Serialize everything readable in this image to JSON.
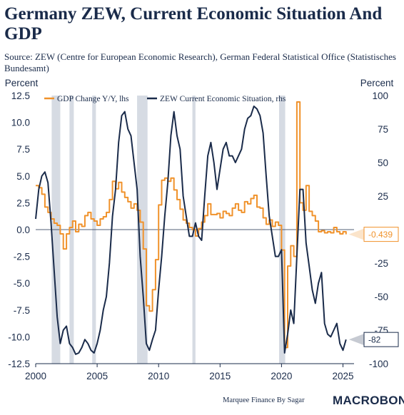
{
  "title": "Germany ZEW, Current Economic Situation And GDP",
  "source": "Source: ZEW (Centre for European Economic Research), German Federal Statistical Office (Statistisches Bundesamt)",
  "footer": {
    "credit": "Marquee Finance By Sagar",
    "logo": "MACROBOND"
  },
  "chart_data": {
    "type": "line",
    "left_axis": {
      "label": "Percent",
      "range": [
        -12.5,
        12.5
      ],
      "ticks": [
        "12.5",
        "10.0",
        "7.5",
        "5.0",
        "2.5",
        "0.0",
        "-2.5",
        "-5.0",
        "-7.5",
        "-10.0",
        "-12.5"
      ]
    },
    "right_axis": {
      "label": "Percent",
      "range": [
        -100,
        100
      ],
      "ticks": [
        "100",
        "75",
        "50",
        "25",
        "",
        "-25",
        "-50",
        "-75",
        "-100"
      ]
    },
    "x_axis": {
      "range": [
        2000,
        2025.9
      ],
      "ticks": [
        "2000",
        "2005",
        "2010",
        "2015",
        "2020",
        "2025"
      ]
    },
    "zero_line": true,
    "recession_bands": [
      [
        2001.3,
        2002.0
      ],
      [
        2002.75,
        2003.1
      ],
      [
        2004.6,
        2004.9
      ],
      [
        2008.25,
        2009.1
      ],
      [
        2012.75,
        2013.0
      ],
      [
        2019.8,
        2020.3
      ]
    ],
    "series": [
      {
        "name": "GDP Change Y/Y, lhs",
        "axis": "left",
        "color": "#f0922b",
        "points": [
          [
            2000,
            4.1
          ],
          [
            2000.25,
            3.9
          ],
          [
            2000.5,
            3.3
          ],
          [
            2000.75,
            2.1
          ],
          [
            2001,
            1.6
          ],
          [
            2001.25,
            1.0
          ],
          [
            2001.5,
            0.6
          ],
          [
            2001.75,
            0.4
          ],
          [
            2002,
            -0.4
          ],
          [
            2002.25,
            -1.8
          ],
          [
            2002.5,
            -0.4
          ],
          [
            2002.75,
            0.2
          ],
          [
            2003,
            0.8
          ],
          [
            2003.25,
            -0.2
          ],
          [
            2003.5,
            0.5
          ],
          [
            2003.75,
            0.3
          ],
          [
            2004,
            1.3
          ],
          [
            2004.25,
            1.6
          ],
          [
            2004.5,
            1.0
          ],
          [
            2004.75,
            0.8
          ],
          [
            2005,
            0.4
          ],
          [
            2005.25,
            1.0
          ],
          [
            2005.5,
            1.2
          ],
          [
            2005.75,
            1.6
          ],
          [
            2006,
            2.8
          ],
          [
            2006.25,
            4.5
          ],
          [
            2006.5,
            3.8
          ],
          [
            2006.75,
            4.4
          ],
          [
            2007,
            3.5
          ],
          [
            2007.25,
            3.0
          ],
          [
            2007.5,
            2.6
          ],
          [
            2007.75,
            2.0
          ],
          [
            2008,
            2.4
          ],
          [
            2008.25,
            1.8
          ],
          [
            2008.5,
            0.7
          ],
          [
            2008.75,
            -1.8
          ],
          [
            2009,
            -7.1
          ],
          [
            2009.25,
            -7.6
          ],
          [
            2009.5,
            -5.6
          ],
          [
            2009.75,
            -2.8
          ],
          [
            2010,
            2.3
          ],
          [
            2010.25,
            4.6
          ],
          [
            2010.5,
            4.8
          ],
          [
            2010.75,
            4.5
          ],
          [
            2011,
            4.8
          ],
          [
            2011.25,
            3.7
          ],
          [
            2011.5,
            2.8
          ],
          [
            2011.75,
            1.9
          ],
          [
            2012,
            0.9
          ],
          [
            2012.25,
            0.6
          ],
          [
            2012.5,
            0.2
          ],
          [
            2012.75,
            0.0
          ],
          [
            2013,
            -0.6
          ],
          [
            2013.25,
            0.1
          ],
          [
            2013.5,
            0.7
          ],
          [
            2013.75,
            1.3
          ],
          [
            2014,
            2.4
          ],
          [
            2014.25,
            1.4
          ],
          [
            2014.5,
            1.4
          ],
          [
            2014.75,
            1.5
          ],
          [
            2015,
            1.1
          ],
          [
            2015.25,
            1.7
          ],
          [
            2015.5,
            1.5
          ],
          [
            2015.75,
            1.3
          ],
          [
            2016,
            2.0
          ],
          [
            2016.25,
            2.4
          ],
          [
            2016.5,
            1.8
          ],
          [
            2016.75,
            1.6
          ],
          [
            2017,
            2.6
          ],
          [
            2017.25,
            2.4
          ],
          [
            2017.5,
            2.9
          ],
          [
            2017.75,
            3.2
          ],
          [
            2018,
            2.1
          ],
          [
            2018.25,
            2.0
          ],
          [
            2018.5,
            1.1
          ],
          [
            2018.75,
            0.5
          ],
          [
            2019,
            0.9
          ],
          [
            2019.25,
            0.3
          ],
          [
            2019.5,
            0.7
          ],
          [
            2019.75,
            0.4
          ],
          [
            2020,
            -1.9
          ],
          [
            2020.25,
            -11.0
          ],
          [
            2020.5,
            -3.4
          ],
          [
            2020.75,
            -1.5
          ],
          [
            2021,
            -2.5
          ],
          [
            2021.25,
            11.9
          ],
          [
            2021.5,
            2.5
          ],
          [
            2021.75,
            1.8
          ],
          [
            2022,
            4.1
          ],
          [
            2022.25,
            1.7
          ],
          [
            2022.5,
            1.3
          ],
          [
            2022.75,
            0.8
          ],
          [
            2023,
            -0.2
          ],
          [
            2023.25,
            -0.1
          ],
          [
            2023.5,
            -0.3
          ],
          [
            2023.75,
            -0.2
          ],
          [
            2024,
            -0.3
          ],
          [
            2024.25,
            0.2
          ],
          [
            2024.5,
            -0.2
          ],
          [
            2024.75,
            -0.4
          ],
          [
            2025,
            -0.2
          ],
          [
            2025.25,
            -0.439
          ]
        ],
        "last_value_label": "-0.439"
      },
      {
        "name": "ZEW Current Economic Situation, rhs",
        "axis": "right",
        "color": "#1a2b4a",
        "points": [
          [
            2000,
            8
          ],
          [
            2000.25,
            30
          ],
          [
            2000.5,
            40
          ],
          [
            2000.75,
            43
          ],
          [
            2001,
            35
          ],
          [
            2001.25,
            5
          ],
          [
            2001.5,
            -30
          ],
          [
            2001.75,
            -65
          ],
          [
            2002,
            -85
          ],
          [
            2002.25,
            -75
          ],
          [
            2002.5,
            -72
          ],
          [
            2002.75,
            -85
          ],
          [
            2003,
            -88
          ],
          [
            2003.25,
            -93
          ],
          [
            2003.5,
            -92
          ],
          [
            2003.75,
            -88
          ],
          [
            2004,
            -82
          ],
          [
            2004.25,
            -85
          ],
          [
            2004.5,
            -90
          ],
          [
            2004.75,
            -92
          ],
          [
            2005,
            -85
          ],
          [
            2005.25,
            -75
          ],
          [
            2005.5,
            -60
          ],
          [
            2005.75,
            -50
          ],
          [
            2006,
            -25
          ],
          [
            2006.25,
            10
          ],
          [
            2006.5,
            30
          ],
          [
            2006.75,
            65
          ],
          [
            2007,
            85
          ],
          [
            2007.25,
            88
          ],
          [
            2007.5,
            75
          ],
          [
            2007.75,
            70
          ],
          [
            2008,
            50
          ],
          [
            2008.25,
            30
          ],
          [
            2008.5,
            -20
          ],
          [
            2008.75,
            -50
          ],
          [
            2009,
            -85
          ],
          [
            2009.25,
            -90
          ],
          [
            2009.5,
            -82
          ],
          [
            2009.75,
            -75
          ],
          [
            2010,
            -45
          ],
          [
            2010.25,
            -20
          ],
          [
            2010.5,
            10
          ],
          [
            2010.75,
            35
          ],
          [
            2011,
            70
          ],
          [
            2011.25,
            88
          ],
          [
            2011.5,
            70
          ],
          [
            2011.75,
            60
          ],
          [
            2012,
            25
          ],
          [
            2012.25,
            10
          ],
          [
            2012.5,
            -5
          ],
          [
            2012.75,
            -5
          ],
          [
            2013,
            5
          ],
          [
            2013.25,
            -5
          ],
          [
            2013.5,
            -8
          ],
          [
            2013.75,
            25
          ],
          [
            2014,
            55
          ],
          [
            2014.25,
            65
          ],
          [
            2014.5,
            50
          ],
          [
            2014.75,
            30
          ],
          [
            2015,
            45
          ],
          [
            2015.25,
            60
          ],
          [
            2015.5,
            65
          ],
          [
            2015.75,
            55
          ],
          [
            2016,
            55
          ],
          [
            2016.25,
            50
          ],
          [
            2016.5,
            55
          ],
          [
            2016.75,
            60
          ],
          [
            2017,
            75
          ],
          [
            2017.25,
            83
          ],
          [
            2017.5,
            85
          ],
          [
            2017.75,
            92
          ],
          [
            2018,
            90
          ],
          [
            2018.25,
            85
          ],
          [
            2018.5,
            72
          ],
          [
            2018.75,
            40
          ],
          [
            2019,
            10
          ],
          [
            2019.25,
            -5
          ],
          [
            2019.5,
            -20
          ],
          [
            2019.75,
            -20
          ],
          [
            2020,
            -15
          ],
          [
            2020.25,
            -92
          ],
          [
            2020.5,
            -78
          ],
          [
            2020.75,
            -60
          ],
          [
            2021,
            -70
          ],
          [
            2021.25,
            -20
          ],
          [
            2021.5,
            30
          ],
          [
            2021.75,
            30
          ],
          [
            2022,
            -10
          ],
          [
            2022.25,
            -27
          ],
          [
            2022.5,
            -45
          ],
          [
            2022.75,
            -55
          ],
          [
            2023,
            -40
          ],
          [
            2023.25,
            -32
          ],
          [
            2023.5,
            -70
          ],
          [
            2023.75,
            -78
          ],
          [
            2024,
            -80
          ],
          [
            2024.25,
            -75
          ],
          [
            2024.5,
            -70
          ],
          [
            2024.75,
            -85
          ],
          [
            2025,
            -90
          ],
          [
            2025.25,
            -82
          ]
        ],
        "last_value_label": "-82"
      }
    ]
  }
}
